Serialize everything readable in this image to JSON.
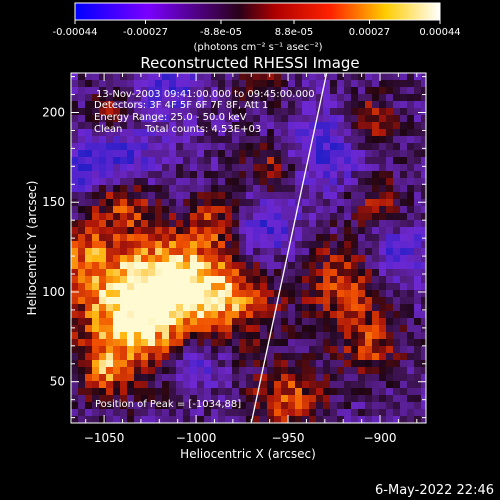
{
  "colorbar": {
    "tick_labels": [
      "-0.00044",
      "-0.00027",
      "-8.8e-05",
      "8.8e-05",
      "0.00027",
      "0.00044"
    ],
    "tick_values": [
      -0.00044,
      -0.00027,
      -8.8e-05,
      8.8e-05,
      0.00027,
      0.00044
    ],
    "range": [
      -0.00044,
      0.00044
    ],
    "units_label": "(photons cm⁻² s⁻¹ asec⁻²)",
    "colors": [
      "#0000ff",
      "#7a00ff",
      "#2a0018",
      "#ff2200",
      "#ffcc00",
      "#ffffff"
    ]
  },
  "annotations": {
    "time_range": "13-Nov-2003 09:41:00.000 to 09:45:00.000",
    "detectors": "Detectors: 3F 4F 5F 6F 7F 8F, Att 1",
    "energy_range": "Energy Range: 25.0 - 50.0 keV",
    "clean": "Clean",
    "total_counts": "Total counts: 4.53E+03",
    "peak_position": "Position of Peak = [-1034,88]"
  },
  "footer_date": "6-May-2022 22:46",
  "chart_data": {
    "type": "heatmap",
    "title": "Reconstructed RHESSI Image",
    "xlabel": "Heliocentric X (arcsec)",
    "ylabel": "Heliocentric Y (arcsec)",
    "xlim": [
      -1068,
      -875
    ],
    "ylim": [
      27,
      222
    ],
    "x_ticks": [
      -1050,
      -1000,
      -950,
      -900
    ],
    "x_tick_labels": [
      "−1050",
      "−1000",
      "−950",
      "−900"
    ],
    "y_ticks": [
      50,
      100,
      150,
      200
    ],
    "y_tick_labels": [
      "50",
      "100",
      "150",
      "200"
    ],
    "limb_line": [
      [
        -970,
        27
      ],
      [
        -929,
        222
      ]
    ],
    "peak": [
      -1034,
      88
    ],
    "grid": false
  },
  "colors": {
    "background": "#000000",
    "foreground": "#ffffff"
  }
}
